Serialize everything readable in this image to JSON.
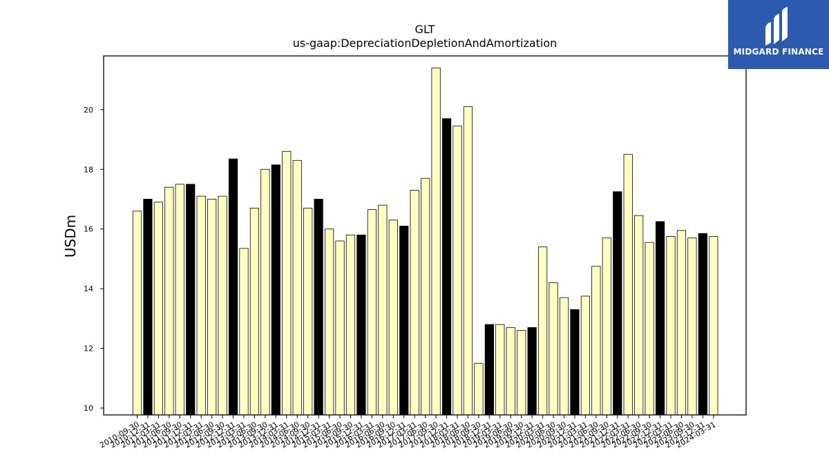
{
  "chart_data": {
    "type": "bar",
    "title": "GLT",
    "subtitle": "us-gaap:DepreciationDepletionAndAmortization",
    "xlabel": "",
    "ylabel": "USDm",
    "ylim": [
      9.77,
      21.8
    ],
    "yticks": [
      10,
      12,
      14,
      16,
      18,
      20
    ],
    "categories": [
      "2010-09-30",
      "2010-12-31",
      "2011-03-31",
      "2011-06-30",
      "2011-09-30",
      "2011-12-31",
      "2012-03-31",
      "2012-06-30",
      "2012-09-30",
      "2012-12-31",
      "2013-03-31",
      "2013-06-30",
      "2013-09-30",
      "2013-12-31",
      "2014-03-31",
      "2014-06-30",
      "2014-09-30",
      "2014-12-31",
      "2015-03-31",
      "2015-06-30",
      "2015-09-30",
      "2015-12-31",
      "2016-03-31",
      "2016-06-30",
      "2016-09-30",
      "2016-12-31",
      "2017-03-31",
      "2017-06-30",
      "2017-09-30",
      "2017-12-31",
      "2018-03-31",
      "2018-06-30",
      "2018-09-30",
      "2018-12-31",
      "2019-03-31",
      "2019-06-30",
      "2019-09-30",
      "2019-12-31",
      "2020-03-31",
      "2020-06-30",
      "2020-09-30",
      "2020-12-31",
      "2021-03-31",
      "2021-06-30",
      "2021-09-30",
      "2021-12-31",
      "2022-03-31",
      "2022-06-30",
      "2022-09-30",
      "2022-12-31",
      "2023-03-31",
      "2023-06-30",
      "2023-09-30",
      "2023-12-31",
      "2024-03-31"
    ],
    "values": [
      16.6,
      17.0,
      16.9,
      17.4,
      17.5,
      17.5,
      17.1,
      17.0,
      17.1,
      18.35,
      15.35,
      16.7,
      18.0,
      18.15,
      18.6,
      18.3,
      16.7,
      17.0,
      16.0,
      15.6,
      15.8,
      15.8,
      16.65,
      16.8,
      16.3,
      16.1,
      17.3,
      17.7,
      21.4,
      19.7,
      19.45,
      20.1,
      11.5,
      12.8,
      12.8,
      12.7,
      12.6,
      12.7,
      15.4,
      14.2,
      13.7,
      13.3,
      13.75,
      14.75,
      15.7,
      17.25,
      18.5,
      16.45,
      15.55,
      16.25,
      15.75,
      15.95,
      15.7,
      15.85,
      15.75
    ],
    "highlight": [
      false,
      true,
      false,
      false,
      false,
      true,
      false,
      false,
      false,
      true,
      false,
      false,
      false,
      true,
      false,
      false,
      false,
      true,
      false,
      false,
      false,
      true,
      false,
      false,
      false,
      true,
      false,
      false,
      false,
      true,
      false,
      false,
      false,
      true,
      false,
      false,
      false,
      true,
      false,
      false,
      false,
      true,
      false,
      false,
      false,
      true,
      false,
      false,
      false,
      true,
      false,
      false,
      false,
      true,
      false
    ],
    "colors": {
      "bar": "#ffffc0",
      "highlight": "#000000",
      "edge": "#000000"
    },
    "grid": false,
    "legend": "none"
  },
  "logo": {
    "text": "MIDGARD FINANCE",
    "color": "#2b5ab0"
  }
}
